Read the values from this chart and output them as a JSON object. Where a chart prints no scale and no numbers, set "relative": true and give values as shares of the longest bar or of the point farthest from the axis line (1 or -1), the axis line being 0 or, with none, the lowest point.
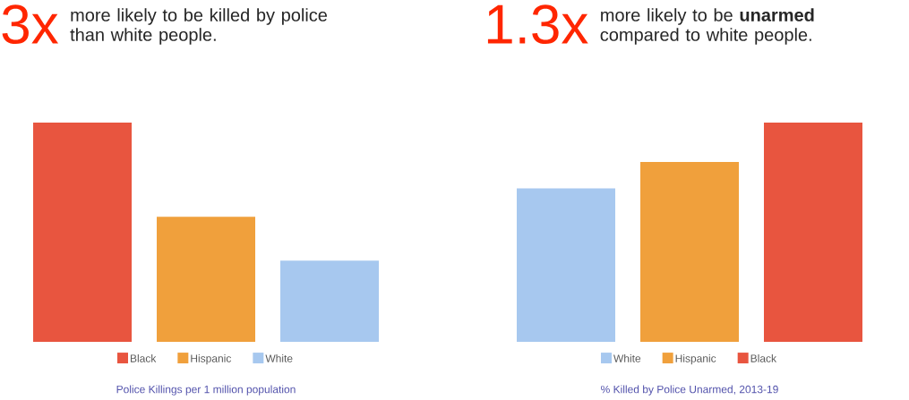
{
  "chart_data": [
    {
      "type": "bar",
      "title": "3x",
      "subtitle": "more likely to be killed by police than white people.",
      "xlabel": "Police Killings per 1 million population",
      "relative": true,
      "legend": "bottom",
      "categories": [
        null
      ],
      "series": [
        {
          "name": "Black",
          "color": "#e8553f",
          "values": [
            1
          ]
        },
        {
          "name": "Hispanic",
          "color": "#f0a03c",
          "values": [
            0.57
          ]
        },
        {
          "name": "White",
          "color": "#a7c8ef",
          "values": [
            0.37
          ]
        }
      ]
    },
    {
      "type": "bar",
      "title": "1.3x",
      "subtitle": "more likely to be **unarmed** compared to white people.",
      "xlabel": "% Killed by Police Unarmed, 2013-19",
      "relative": true,
      "legend": "bottom",
      "categories": [
        null
      ],
      "series": [
        {
          "name": "White",
          "color": "#a7c8ef",
          "values": [
            0.7
          ]
        },
        {
          "name": "Hispanic",
          "color": "#f0a03c",
          "values": [
            0.82
          ]
        },
        {
          "name": "Black",
          "color": "#e8553f",
          "values": [
            1
          ]
        }
      ]
    }
  ]
}
